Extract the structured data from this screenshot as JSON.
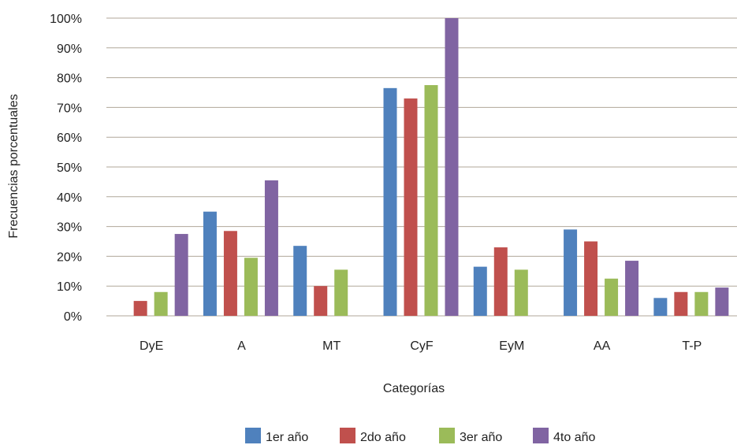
{
  "chart_data": {
    "type": "bar",
    "title": "",
    "xlabel": "Categorías",
    "ylabel": "Frecuencias porcentuales",
    "ylim": [
      0,
      100
    ],
    "yticks": [
      0,
      10,
      20,
      30,
      40,
      50,
      60,
      70,
      80,
      90,
      100
    ],
    "ytick_suffix": "%",
    "grid": true,
    "legend_position": "bottom",
    "categories": [
      "DyE",
      "A",
      "MT",
      "CyF",
      "EyM",
      "AA",
      "T-P"
    ],
    "series": [
      {
        "name": "1er año",
        "color": "#4F81BD",
        "values": [
          0,
          35,
          23.5,
          76.5,
          16.5,
          29,
          6
        ]
      },
      {
        "name": "2do año",
        "color": "#C0504D",
        "values": [
          5,
          28.5,
          10,
          73,
          23,
          25,
          8
        ]
      },
      {
        "name": "3er año",
        "color": "#9BBB59",
        "values": [
          8,
          19.5,
          15.5,
          77.5,
          15.5,
          12.5,
          8
        ]
      },
      {
        "name": "4to año",
        "color": "#8064A2",
        "values": [
          27.5,
          45.5,
          0,
          100,
          0,
          18.5,
          9.5
        ]
      }
    ]
  }
}
